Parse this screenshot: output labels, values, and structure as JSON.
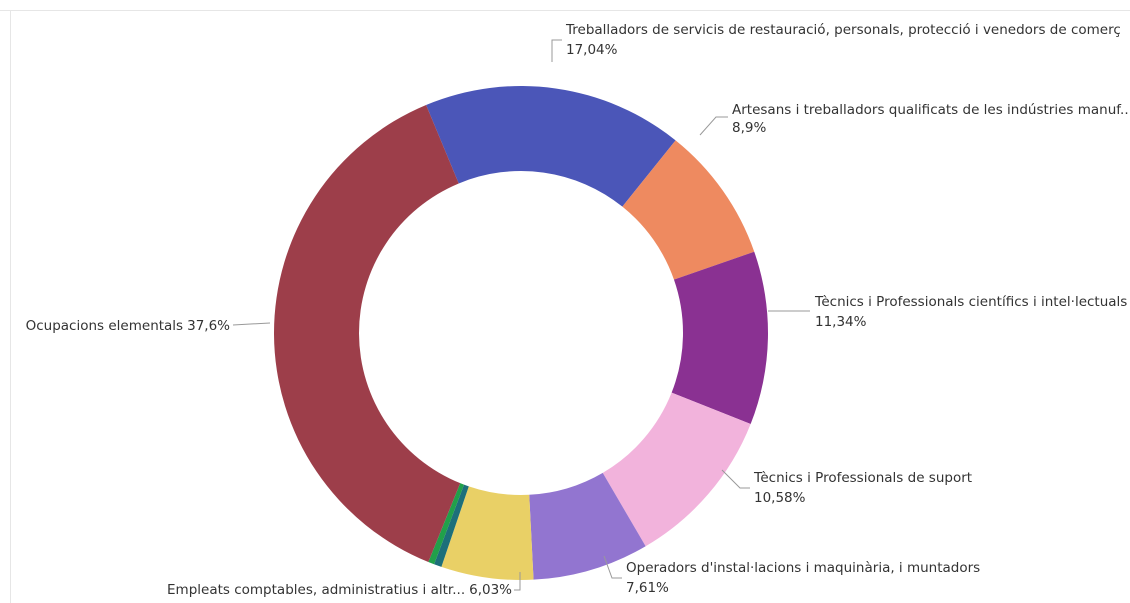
{
  "chart_data": {
    "type": "donut",
    "categories": [
      "Treballadors de servicis de restauració, personals, protecció i venedors de comerç",
      "Artesans i treballadors qualificats de les indústries manuf...",
      "Tècnics i Professionals científics i intel·lectuals",
      "Tècnics i Professionals de suport",
      "Operadors d'instal·lacions i maquinària, i muntadors",
      "Empleats comptables, administratius i altr...",
      null,
      null,
      "Ocupacions elementals"
    ],
    "values": [
      17.04,
      8.9,
      11.34,
      10.58,
      7.61,
      6.03,
      0.5,
      0.4,
      37.6
    ],
    "value_labels": [
      "17,04%",
      "8,9%",
      "11,34%",
      "10,58%",
      "7,61%",
      "6,03%",
      null,
      null,
      "37,6%"
    ],
    "colors": [
      "#4b56b8",
      "#ee8a60",
      "#8a3192",
      "#f2b3dc",
      "#9275d0",
      "#e9d066",
      "#1d6f7a",
      "#21a04a",
      "#9d3e4a"
    ]
  }
}
